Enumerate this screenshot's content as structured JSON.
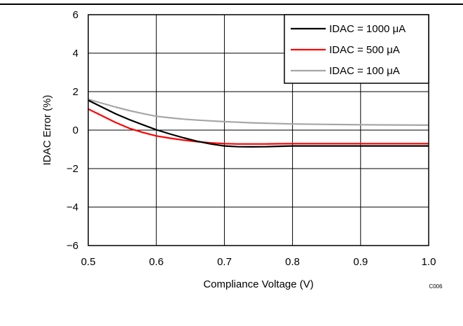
{
  "chart_data": {
    "type": "line",
    "xlabel": "Compliance Voltage (V)",
    "ylabel": "IDAC Error (%)",
    "xlim": [
      0.5,
      1.0
    ],
    "ylim": [
      -6,
      6
    ],
    "x_ticks": [
      0.5,
      0.6,
      0.7,
      0.8,
      0.9,
      1.0
    ],
    "x_tick_labels": [
      "0.5",
      "0.6",
      "0.7",
      "0.8",
      "0.9",
      "1.0"
    ],
    "y_ticks": [
      -6,
      -4,
      -2,
      0,
      2,
      4,
      6
    ],
    "y_tick_labels": [
      "−6",
      "−4",
      "−2",
      "0",
      "2",
      "4",
      "6"
    ],
    "grid": true,
    "legend_position": "top-right",
    "series": [
      {
        "name": "IDAC = 1000 μA",
        "color": "#000000",
        "x": [
          0.5,
          0.52,
          0.54,
          0.56,
          0.58,
          0.6,
          0.62,
          0.64,
          0.66,
          0.68,
          0.7,
          0.72,
          0.74,
          0.76,
          0.78,
          0.8,
          0.85,
          0.9,
          0.95,
          1.0
        ],
        "y": [
          1.55,
          1.2,
          0.85,
          0.55,
          0.28,
          0.02,
          -0.2,
          -0.4,
          -0.58,
          -0.72,
          -0.82,
          -0.86,
          -0.87,
          -0.86,
          -0.84,
          -0.82,
          -0.82,
          -0.82,
          -0.82,
          -0.82
        ]
      },
      {
        "name": "IDAC = 500 μA",
        "color": "#ff0000",
        "x": [
          0.5,
          0.52,
          0.54,
          0.56,
          0.58,
          0.6,
          0.62,
          0.64,
          0.66,
          0.68,
          0.7,
          0.72,
          0.74,
          0.76,
          0.78,
          0.8,
          0.85,
          0.9,
          0.95,
          1.0
        ],
        "y": [
          1.1,
          0.75,
          0.4,
          0.1,
          -0.12,
          -0.3,
          -0.42,
          -0.52,
          -0.6,
          -0.66,
          -0.7,
          -0.72,
          -0.72,
          -0.72,
          -0.71,
          -0.7,
          -0.7,
          -0.7,
          -0.7,
          -0.7
        ]
      },
      {
        "name": "IDAC = 100 μA",
        "color": "#a6a6a6",
        "x": [
          0.5,
          0.52,
          0.54,
          0.56,
          0.58,
          0.6,
          0.62,
          0.64,
          0.66,
          0.68,
          0.7,
          0.72,
          0.74,
          0.76,
          0.78,
          0.8,
          0.85,
          0.9,
          0.95,
          1.0
        ],
        "y": [
          1.6,
          1.4,
          1.2,
          1.02,
          0.86,
          0.72,
          0.64,
          0.57,
          0.52,
          0.48,
          0.44,
          0.41,
          0.38,
          0.36,
          0.34,
          0.32,
          0.3,
          0.28,
          0.27,
          0.26
        ]
      }
    ]
  },
  "figure_code": "C006"
}
